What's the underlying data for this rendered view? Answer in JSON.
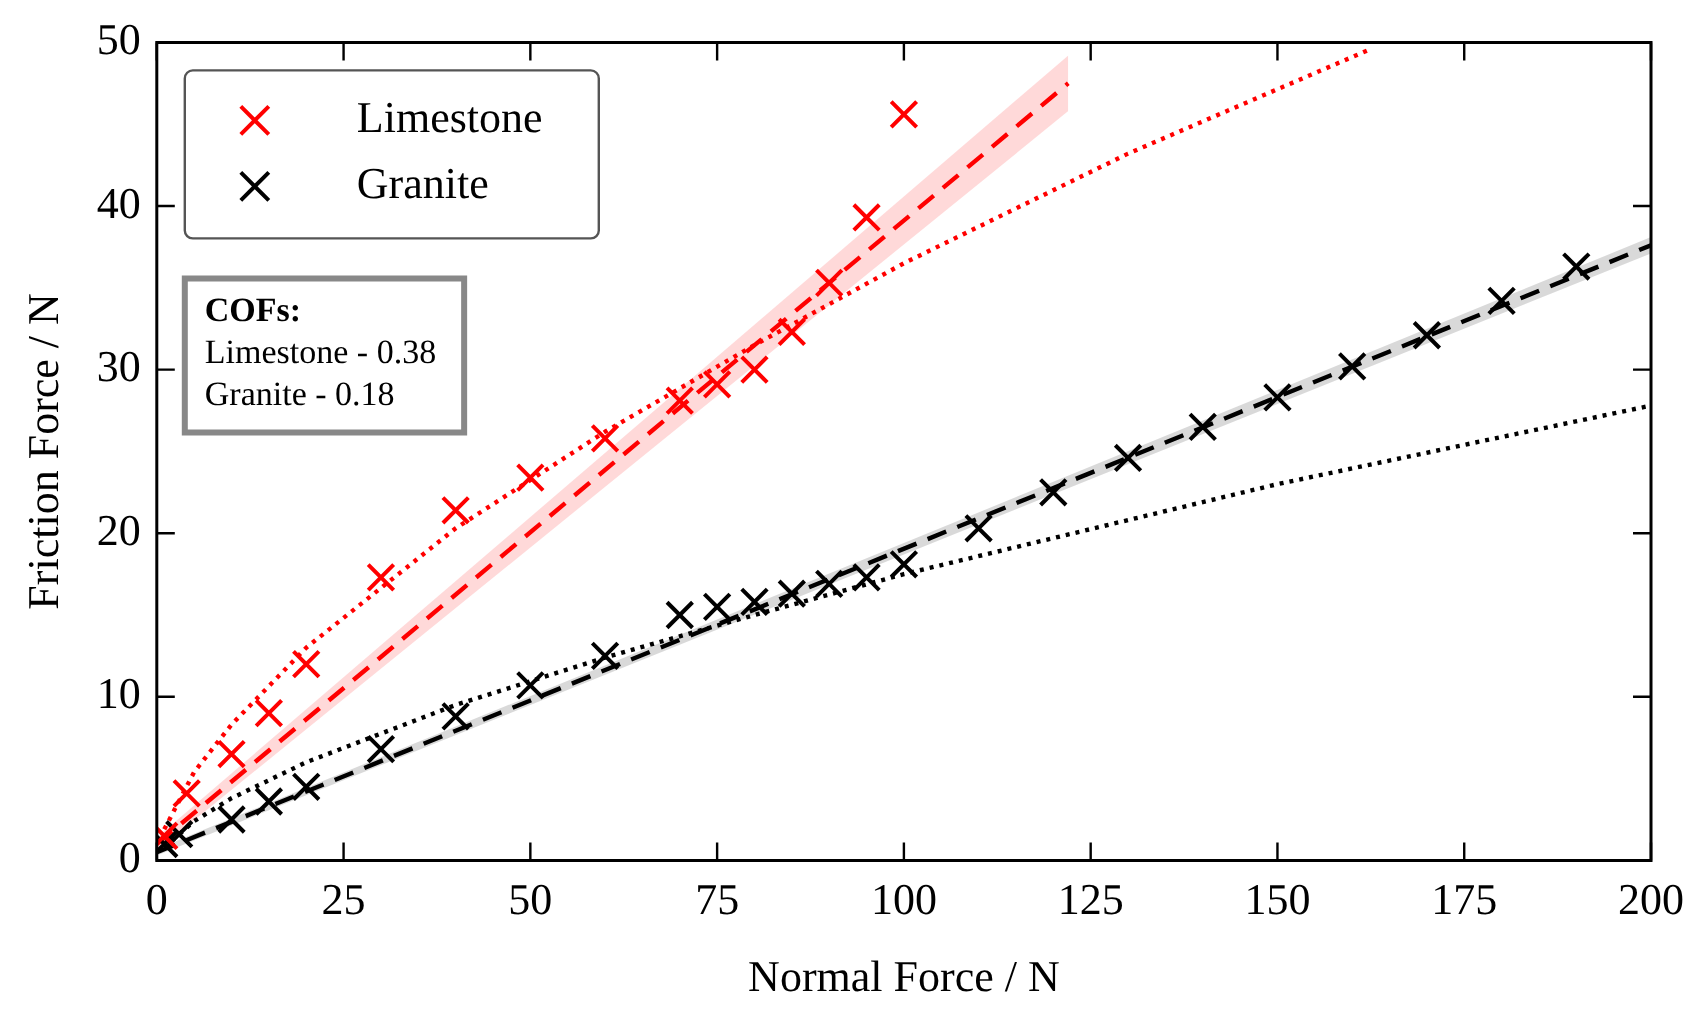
{
  "chart_data": {
    "type": "scatter",
    "xlabel": "Normal Force / N",
    "ylabel": "Friction Force / N",
    "xlim": [
      0,
      200
    ],
    "xticks": [
      0,
      25,
      50,
      75,
      100,
      125,
      150,
      175,
      200
    ],
    "ylim": [
      0,
      50
    ],
    "yticks": [
      0,
      10,
      20,
      30,
      40,
      50
    ],
    "legend": "top left",
    "marker": "cross",
    "grid": false,
    "annotations": [
      "COFs:",
      "Limestone - 0.38",
      "Granite - 0.18"
    ],
    "series": [
      {
        "name": "Limestone",
        "color": "#ff0000",
        "x": [
          1,
          4,
          10,
          15,
          20,
          30,
          40,
          50,
          60,
          70,
          75,
          80,
          85,
          90,
          95,
          100
        ],
        "values": [
          1.5,
          4.1,
          6.5,
          9,
          12,
          17.3,
          21.4,
          23.4,
          25.8,
          28.1,
          29.1,
          30,
          32.3,
          35.3,
          39.3,
          45.6
        ]
      },
      {
        "name": "Granite",
        "color": "#000000",
        "x": [
          1,
          3,
          10,
          15,
          20,
          30,
          40,
          50,
          60,
          70,
          75,
          80,
          85,
          90,
          95,
          100,
          110,
          120,
          130,
          140,
          150,
          160,
          170,
          180,
          190
        ],
        "values": [
          1,
          1.6,
          2.5,
          3.6,
          4.5,
          6.8,
          8.8,
          10.7,
          12.5,
          15,
          15.5,
          15.8,
          16.3,
          16.9,
          17.3,
          18.1,
          20.3,
          22.5,
          24.6,
          26.5,
          28.3,
          30.2,
          32.1,
          34.2,
          36.3
        ]
      },
      {
        "type": "line",
        "marker": "none",
        "color": "#ff0000",
        "line_style": "dashed",
        "x": [
          0,
          122
        ],
        "values": [
          1,
          47.5
        ],
        "lower": [
          0.6,
          45.8
        ],
        "upper": [
          1.4,
          49.2
        ]
      },
      {
        "type": "line",
        "marker": "none",
        "color": "#ff0000",
        "line_style": "dotted",
        "x": [
          1,
          5,
          10,
          20,
          40,
          60,
          80,
          100,
          130,
          162
        ],
        "values": [
          1.9,
          5.4,
          8.3,
          13,
          20.3,
          26.2,
          31.5,
          36.5,
          43.2,
          49.5
        ]
      },
      {
        "type": "line",
        "marker": "none",
        "color": "#000000",
        "line_style": "dashed",
        "x": [
          0,
          200
        ],
        "values": [
          0.5,
          37.6
        ],
        "lower": [
          0.3,
          37.1
        ],
        "upper": [
          0.7,
          38.1
        ]
      },
      {
        "type": "line",
        "marker": "none",
        "color": "#000000",
        "line_style": "dotted",
        "x": [
          1,
          5,
          10,
          20,
          40,
          60,
          80,
          100,
          150,
          200
        ],
        "values": [
          0.8,
          2.4,
          3.8,
          6,
          9.5,
          12.4,
          15,
          17.5,
          23,
          27.8
        ]
      }
    ]
  }
}
